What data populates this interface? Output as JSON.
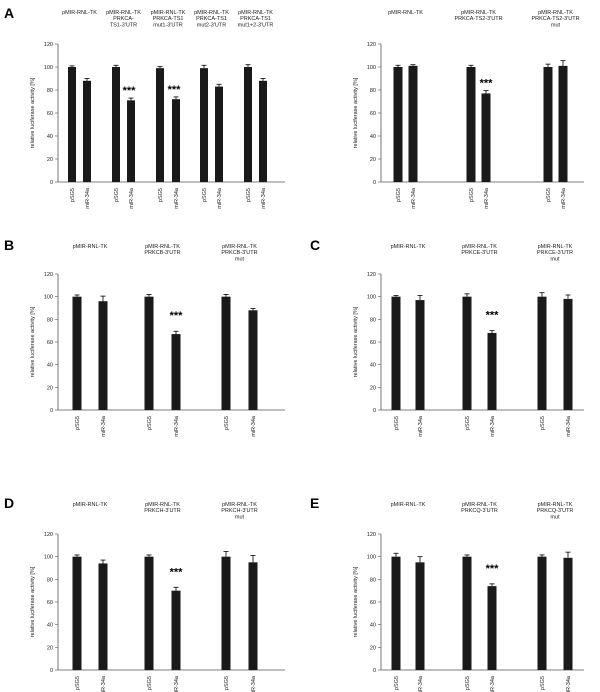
{
  "chart_data": [
    {
      "panel": "A",
      "type": "bar",
      "ylabel": "relative luciferase activity [%]",
      "ylim": [
        0,
        120
      ],
      "yticks": [
        0,
        20,
        40,
        60,
        80,
        100,
        120
      ],
      "groups": [
        {
          "label": [
            "pMIR-RNL-TK"
          ],
          "bars": [
            {
              "x": "pSG5",
              "value": 100,
              "err": 1
            },
            {
              "x": "miR-34a",
              "value": 88,
              "err": 2
            }
          ]
        },
        {
          "label": [
            "pMIR-RNL-TK",
            "PRKCA-",
            "TS1-3'UTR"
          ],
          "bars": [
            {
              "x": "pSG5",
              "value": 100,
              "err": 1.5
            },
            {
              "x": "miR-34a",
              "value": 71,
              "err": 2
            }
          ],
          "stars": "***"
        },
        {
          "label": [
            "pMIR-RNL-TK",
            "PRKCA-TS1",
            "mut1-3'UTR"
          ],
          "bars": [
            {
              "x": "pSG5",
              "value": 99,
              "err": 1.5
            },
            {
              "x": "miR-34a",
              "value": 72,
              "err": 2
            }
          ],
          "stars": "***"
        },
        {
          "label": [
            "pMIR-RNL-TK",
            "PRKCA-TS1",
            "mut2-3'UTR"
          ],
          "bars": [
            {
              "x": "pSG5",
              "value": 99,
              "err": 2.5
            },
            {
              "x": "miR-34a",
              "value": 83,
              "err": 2
            }
          ]
        },
        {
          "label": [
            "pMIR-RNL-TK",
            "PRKCA-TS1",
            "mut1+2-3'UTR"
          ],
          "bars": [
            {
              "x": "pSG5",
              "value": 100,
              "err": 2
            },
            {
              "x": "miR-34a",
              "value": 88,
              "err": 2
            }
          ]
        }
      ]
    },
    {
      "panel": "",
      "type": "bar",
      "ylabel": "relative luciferase activity [%]",
      "ylim": [
        0,
        120
      ],
      "yticks": [
        0,
        20,
        40,
        60,
        80,
        100,
        120
      ],
      "groups": [
        {
          "label": [
            "pMIR-RNL-TK"
          ],
          "bars": [
            {
              "x": "pSG5",
              "value": 100,
              "err": 1.5
            },
            {
              "x": "miR-34a",
              "value": 101,
              "err": 1
            }
          ]
        },
        {
          "label": [
            "pMIR-RNL-TK",
            "PRKCA-TS2-3'UTR"
          ],
          "bars": [
            {
              "x": "pSG5",
              "value": 100,
              "err": 1.5
            },
            {
              "x": "miR-34a",
              "value": 77,
              "err": 2.5
            }
          ],
          "stars": "***"
        },
        {
          "label": [
            "pMIR-RNL-TK",
            "PRKCA-TS2-3'UTR",
            "mut"
          ],
          "bars": [
            {
              "x": "pSG5",
              "value": 100,
              "err": 2.5
            },
            {
              "x": "miR-34a",
              "value": 101,
              "err": 4.5
            }
          ]
        }
      ]
    },
    {
      "panel": "B",
      "type": "bar",
      "ylabel": "relative luciferase activity [%]",
      "ylim": [
        0,
        120
      ],
      "yticks": [
        0,
        20,
        40,
        60,
        80,
        100,
        120
      ],
      "groups": [
        {
          "label": [
            "pMIR-RNL-TK"
          ],
          "bars": [
            {
              "x": "pSG5",
              "value": 100,
              "err": 1.5
            },
            {
              "x": "miR-34a",
              "value": 96,
              "err": 4.5
            }
          ]
        },
        {
          "label": [
            "pMIR-RNL-TK",
            "PRKCB-3'UTR"
          ],
          "bars": [
            {
              "x": "pSG5",
              "value": 100,
              "err": 2
            },
            {
              "x": "miR-34a",
              "value": 67,
              "err": 2.5
            }
          ],
          "stars": "***"
        },
        {
          "label": [
            "pMIR-RNL-TK",
            "PRKCB-3'UTR",
            "mut"
          ],
          "bars": [
            {
              "x": "pSG5",
              "value": 100,
              "err": 2
            },
            {
              "x": "miR-34a",
              "value": 88,
              "err": 1.5
            }
          ]
        }
      ]
    },
    {
      "panel": "C",
      "type": "bar",
      "ylabel": "relative luciferase activity [%]",
      "ylim": [
        0,
        120
      ],
      "yticks": [
        0,
        20,
        40,
        60,
        80,
        100,
        120
      ],
      "groups": [
        {
          "label": [
            "pMIR-RNL-TK"
          ],
          "bars": [
            {
              "x": "pSG5",
              "value": 100,
              "err": 1
            },
            {
              "x": "miR-34a",
              "value": 97,
              "err": 4
            }
          ]
        },
        {
          "label": [
            "pMIR-RNL-TK",
            "PRKCE-3'UTR"
          ],
          "bars": [
            {
              "x": "pSG5",
              "value": 100,
              "err": 2.5
            },
            {
              "x": "miR-34a",
              "value": 68,
              "err": 2
            }
          ],
          "stars": "***"
        },
        {
          "label": [
            "pMIR-RNL-TK",
            "PRKCE-3'UTR",
            "mut"
          ],
          "bars": [
            {
              "x": "pSG5",
              "value": 100,
              "err": 3.5
            },
            {
              "x": "miR-34a",
              "value": 98,
              "err": 3.5
            }
          ]
        }
      ]
    },
    {
      "panel": "D",
      "type": "bar",
      "ylabel": "relative luciferase activity [%]",
      "ylim": [
        0,
        120
      ],
      "yticks": [
        0,
        20,
        40,
        60,
        80,
        100,
        120
      ],
      "groups": [
        {
          "label": [
            "pMIR-RNL-TK"
          ],
          "bars": [
            {
              "x": "pSG5",
              "value": 100,
              "err": 1.5
            },
            {
              "x": "miR-34a",
              "value": 94,
              "err": 3
            }
          ]
        },
        {
          "label": [
            "pMIR-RNL-TK",
            "PRKCH-3'UTR"
          ],
          "bars": [
            {
              "x": "pSG5",
              "value": 100,
              "err": 1.5
            },
            {
              "x": "miR-34a",
              "value": 70,
              "err": 3
            }
          ],
          "stars": "***"
        },
        {
          "label": [
            "pMIR-RNL-TK",
            "PRKCH-3'UTR",
            "mut"
          ],
          "bars": [
            {
              "x": "pSG5",
              "value": 100,
              "err": 4.5
            },
            {
              "x": "miR-34a",
              "value": 95,
              "err": 6
            }
          ]
        }
      ]
    },
    {
      "panel": "E",
      "type": "bar",
      "ylabel": "relative luciferase activity [%]",
      "ylim": [
        0,
        120
      ],
      "yticks": [
        0,
        20,
        40,
        60,
        80,
        100,
        120
      ],
      "groups": [
        {
          "label": [
            "pMIR-RNL-TK"
          ],
          "bars": [
            {
              "x": "pSG5",
              "value": 100,
              "err": 3
            },
            {
              "x": "miR-34a",
              "value": 95,
              "err": 5
            }
          ]
        },
        {
          "label": [
            "pMIR-RNL-TK",
            "PRKCQ-3'UTR"
          ],
          "bars": [
            {
              "x": "pSG5",
              "value": 100,
              "err": 1.5
            },
            {
              "x": "miR-34a",
              "value": 74,
              "err": 2
            }
          ],
          "stars": "***"
        },
        {
          "label": [
            "pMIR-RNL-TK",
            "PRKCQ-3'UTR",
            "mut"
          ],
          "bars": [
            {
              "x": "pSG5",
              "value": 100,
              "err": 1.5
            },
            {
              "x": "miR-34a",
              "value": 99,
              "err": 5
            }
          ]
        }
      ]
    }
  ],
  "colors": {
    "bar": "#1a1a1a",
    "axis": "#555555",
    "text": "#222222"
  }
}
